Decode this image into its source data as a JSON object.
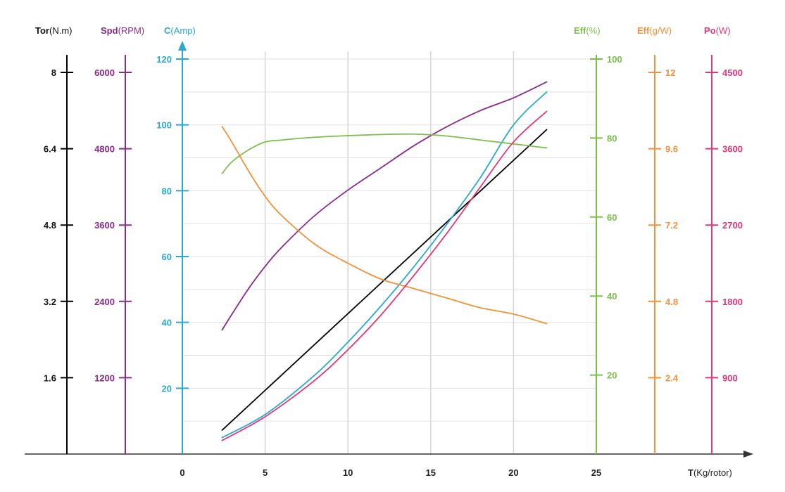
{
  "chart_data": {
    "type": "line",
    "xlabel": {
      "bold": "T",
      "unit": "(Kg/rotor)"
    },
    "x_ticks": [
      0,
      5,
      10,
      15,
      20,
      25
    ],
    "xlim": [
      0,
      25
    ],
    "grid": true,
    "axes": [
      {
        "id": "tor",
        "bold": "Tor",
        "unit": "(N.m)",
        "color": "#000000",
        "min": 0,
        "max": 8,
        "ticks": [
          1.6,
          3.2,
          4.8,
          6.4,
          8
        ],
        "tick_labels": [
          "1.6",
          "3.2",
          "4.8",
          "6.4",
          "8"
        ]
      },
      {
        "id": "spd",
        "bold": "Spd",
        "unit": "(RPM)",
        "color": "#8a2a8c",
        "min": 0,
        "max": 6000,
        "ticks": [
          1200,
          2400,
          3600,
          4800,
          6000
        ],
        "tick_labels": [
          "1200",
          "2400",
          "3600",
          "4800",
          "6000"
        ]
      },
      {
        "id": "cur",
        "bold": "C",
        "unit": "(Amp)",
        "color": "#2aa8d4",
        "min": 0,
        "max": 120,
        "ticks": [
          20,
          40,
          60,
          80,
          100,
          120
        ],
        "tick_labels": [
          "20",
          "40",
          "60",
          "80",
          "100",
          "120"
        ]
      },
      {
        "id": "effp",
        "bold": "Eff",
        "unit": "(%)",
        "color": "#7cbf4a",
        "min": 0,
        "max": 100,
        "ticks": [
          20,
          40,
          60,
          80,
          100
        ],
        "tick_labels": [
          "20",
          "40",
          "60",
          "80",
          "100"
        ]
      },
      {
        "id": "effg",
        "bold": "Eff",
        "unit": "(g/W)",
        "color": "#f0923a",
        "min": 0,
        "max": 12,
        "ticks": [
          2.4,
          4.8,
          7.2,
          9.6,
          12
        ],
        "tick_labels": [
          "2.4",
          "4.8",
          "7.2",
          "9.6",
          "12"
        ]
      },
      {
        "id": "po",
        "bold": "Po",
        "unit": "(W)",
        "color": "#e0377a",
        "min": 0,
        "max": 4500,
        "ticks": [
          900,
          1800,
          2700,
          3600,
          4500
        ],
        "tick_labels": [
          "900",
          "1800",
          "2700",
          "3600",
          "4500"
        ]
      }
    ],
    "series": [
      {
        "axis": "tor",
        "color": "#000000",
        "x": [
          2.4,
          22
        ],
        "y": [
          0.5,
          6.8
        ]
      },
      {
        "axis": "spd",
        "color": "#8a2a8c",
        "x": [
          2.4,
          3,
          4,
          5,
          6,
          8,
          10,
          12,
          14,
          16,
          18,
          20,
          22
        ],
        "y": [
          1950,
          2200,
          2600,
          2950,
          3250,
          3750,
          4150,
          4500,
          4850,
          5150,
          5400,
          5600,
          5850
        ]
      },
      {
        "axis": "cur",
        "color": "#2aa8d4",
        "x": [
          2.4,
          5,
          8,
          10,
          12,
          14,
          16,
          18,
          20,
          22
        ],
        "y": [
          5,
          12,
          24,
          34,
          45,
          57,
          70,
          84,
          100,
          110
        ]
      },
      {
        "axis": "effp",
        "color": "#7cbf4a",
        "x": [
          2.4,
          3,
          4,
          5,
          6,
          8,
          10,
          12,
          14,
          16,
          18,
          20,
          22
        ],
        "y": [
          71,
          74,
          77,
          79,
          79.5,
          80.2,
          80.6,
          80.9,
          81,
          80.5,
          79.5,
          78.5,
          77.5
        ]
      },
      {
        "axis": "effg",
        "color": "#f0923a",
        "x": [
          2.4,
          3,
          4,
          5,
          6,
          8,
          10,
          12,
          14,
          16,
          18,
          20,
          22
        ],
        "y": [
          10.3,
          9.8,
          8.9,
          8.1,
          7.5,
          6.6,
          6.0,
          5.5,
          5.2,
          4.9,
          4.6,
          4.4,
          4.1
        ]
      },
      {
        "axis": "po",
        "color": "#e0377a",
        "x": [
          2.4,
          5,
          8,
          10,
          12,
          14,
          16,
          18,
          20,
          22
        ],
        "y": [
          160,
          440,
          870,
          1230,
          1640,
          2110,
          2610,
          3150,
          3680,
          4040
        ]
      }
    ]
  }
}
